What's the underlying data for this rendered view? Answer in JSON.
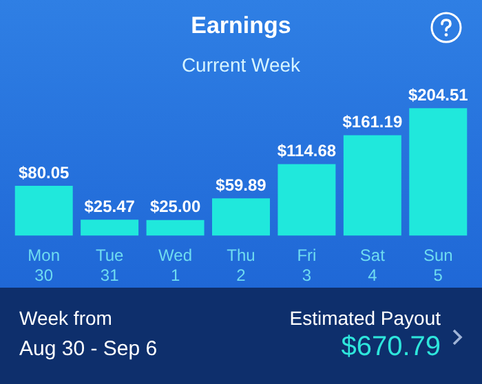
{
  "chart_data": {
    "type": "bar",
    "title": "Earnings",
    "subtitle": "Current Week",
    "categories": [
      "Mon\n30",
      "Tue\n31",
      "Wed\n1",
      "Thu\n2",
      "Fri\n3",
      "Sat\n4",
      "Sun\n5"
    ],
    "values": [
      80.05,
      25.47,
      25.0,
      59.89,
      114.68,
      161.19,
      204.51
    ],
    "value_labels": [
      "$80.05",
      "$25.47",
      "$25.00",
      "$59.89",
      "$114.68",
      "$161.19",
      "$204.51"
    ],
    "color": "#20e8dc",
    "annotations": [
      "Week from",
      "Aug 30 - Sep 6",
      "Estimated Payout",
      "$670.79"
    ]
  }
}
